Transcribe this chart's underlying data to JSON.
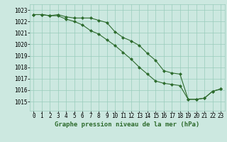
{
  "title": "Graphe pression niveau de la mer (hPa)",
  "bg_color": "#cce8e0",
  "grid_color": "#99ccbb",
  "line_color": "#2d6b2d",
  "xlim": [
    -0.5,
    23.5
  ],
  "ylim": [
    1014.2,
    1023.5
  ],
  "yticks": [
    1015,
    1016,
    1017,
    1018,
    1019,
    1020,
    1021,
    1022,
    1023
  ],
  "xticks": [
    0,
    1,
    2,
    3,
    4,
    5,
    6,
    7,
    8,
    9,
    10,
    11,
    12,
    13,
    14,
    15,
    16,
    17,
    18,
    19,
    20,
    21,
    22,
    23
  ],
  "series1_x": [
    0,
    1,
    2,
    3,
    4,
    5,
    6,
    7,
    8,
    9,
    10,
    11,
    12,
    13,
    14,
    15,
    16,
    17,
    18,
    19,
    20,
    21,
    22,
    23
  ],
  "series1_y": [
    1022.6,
    1022.6,
    1022.5,
    1022.6,
    1022.4,
    1022.3,
    1022.3,
    1022.3,
    1022.1,
    1021.9,
    1021.1,
    1020.6,
    1020.3,
    1019.9,
    1019.2,
    1018.6,
    1017.7,
    1017.5,
    1017.4,
    1015.2,
    1015.2,
    1015.3,
    1015.9,
    1016.1
  ],
  "series2_x": [
    0,
    1,
    2,
    3,
    4,
    5,
    6,
    7,
    8,
    9,
    10,
    11,
    12,
    13,
    14,
    15,
    16,
    17,
    18,
    19,
    20,
    21,
    22,
    23
  ],
  "series2_y": [
    1022.6,
    1022.6,
    1022.5,
    1022.5,
    1022.2,
    1022.0,
    1021.7,
    1021.2,
    1020.9,
    1020.4,
    1019.9,
    1019.3,
    1018.7,
    1018.0,
    1017.4,
    1016.8,
    1016.6,
    1016.5,
    1016.4,
    1015.2,
    1015.2,
    1015.3,
    1015.9,
    1016.1
  ],
  "tick_fontsize": 5.5,
  "title_fontsize": 6.5
}
